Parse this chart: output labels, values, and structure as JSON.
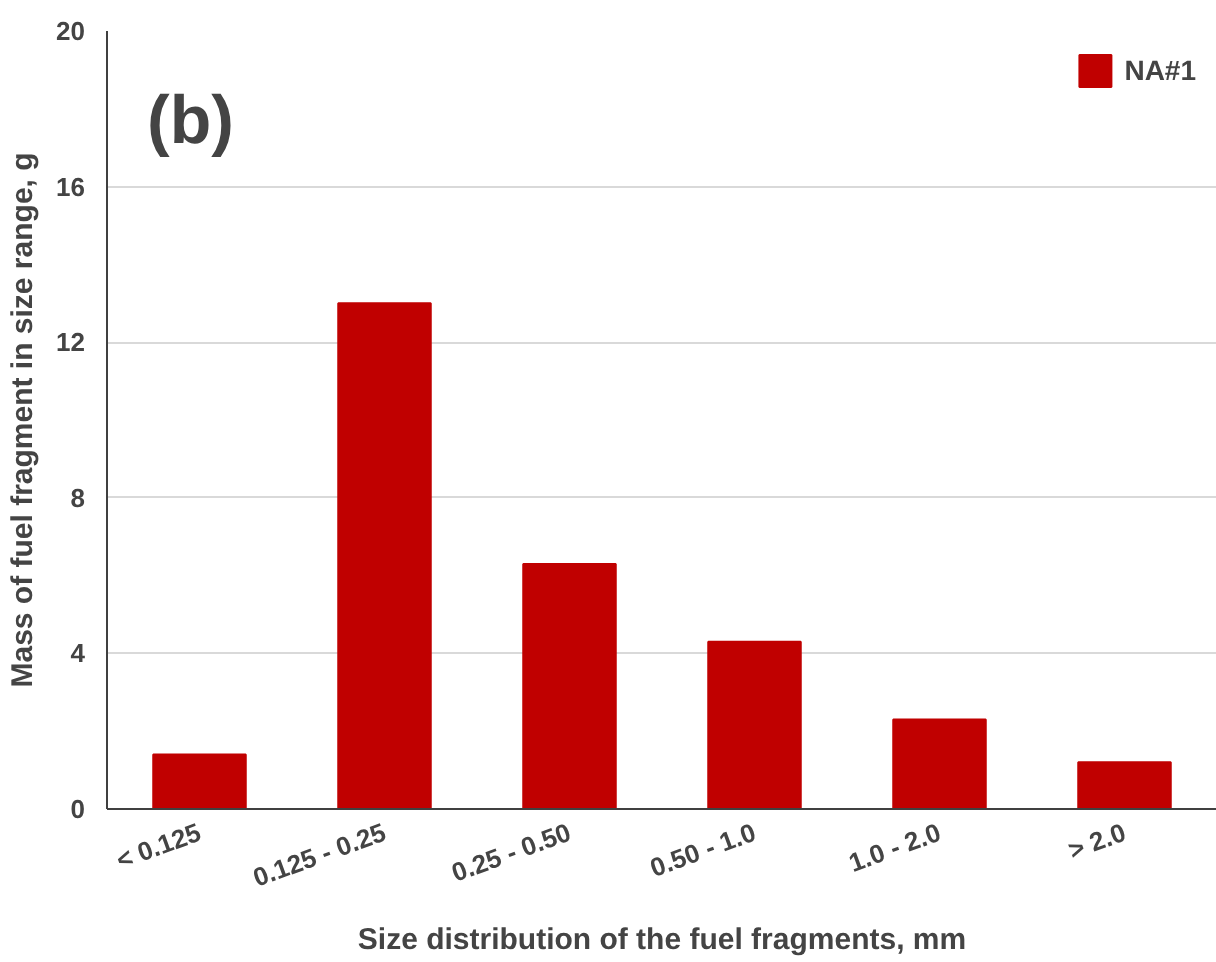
{
  "chart_data": {
    "type": "bar",
    "categories": [
      "< 0.125",
      "0.125 - 0.25",
      "0.25 - 0.50",
      "0.50 - 1.0",
      "1.0 - 2.0",
      "> 2.0"
    ],
    "series": [
      {
        "name": "NA#1",
        "color": "#c00000",
        "values": [
          1.4,
          13.0,
          6.3,
          4.3,
          2.3,
          1.2
        ]
      }
    ],
    "xlabel": "Size distribution of the fuel fragments, mm",
    "ylabel": "Mass of fuel fragment in size range, g",
    "annotations": [
      "(b)"
    ],
    "ylim": [
      0,
      20
    ],
    "yticks": [
      0,
      4,
      8,
      12,
      16,
      20
    ],
    "grid": "y",
    "legend": "top right"
  }
}
